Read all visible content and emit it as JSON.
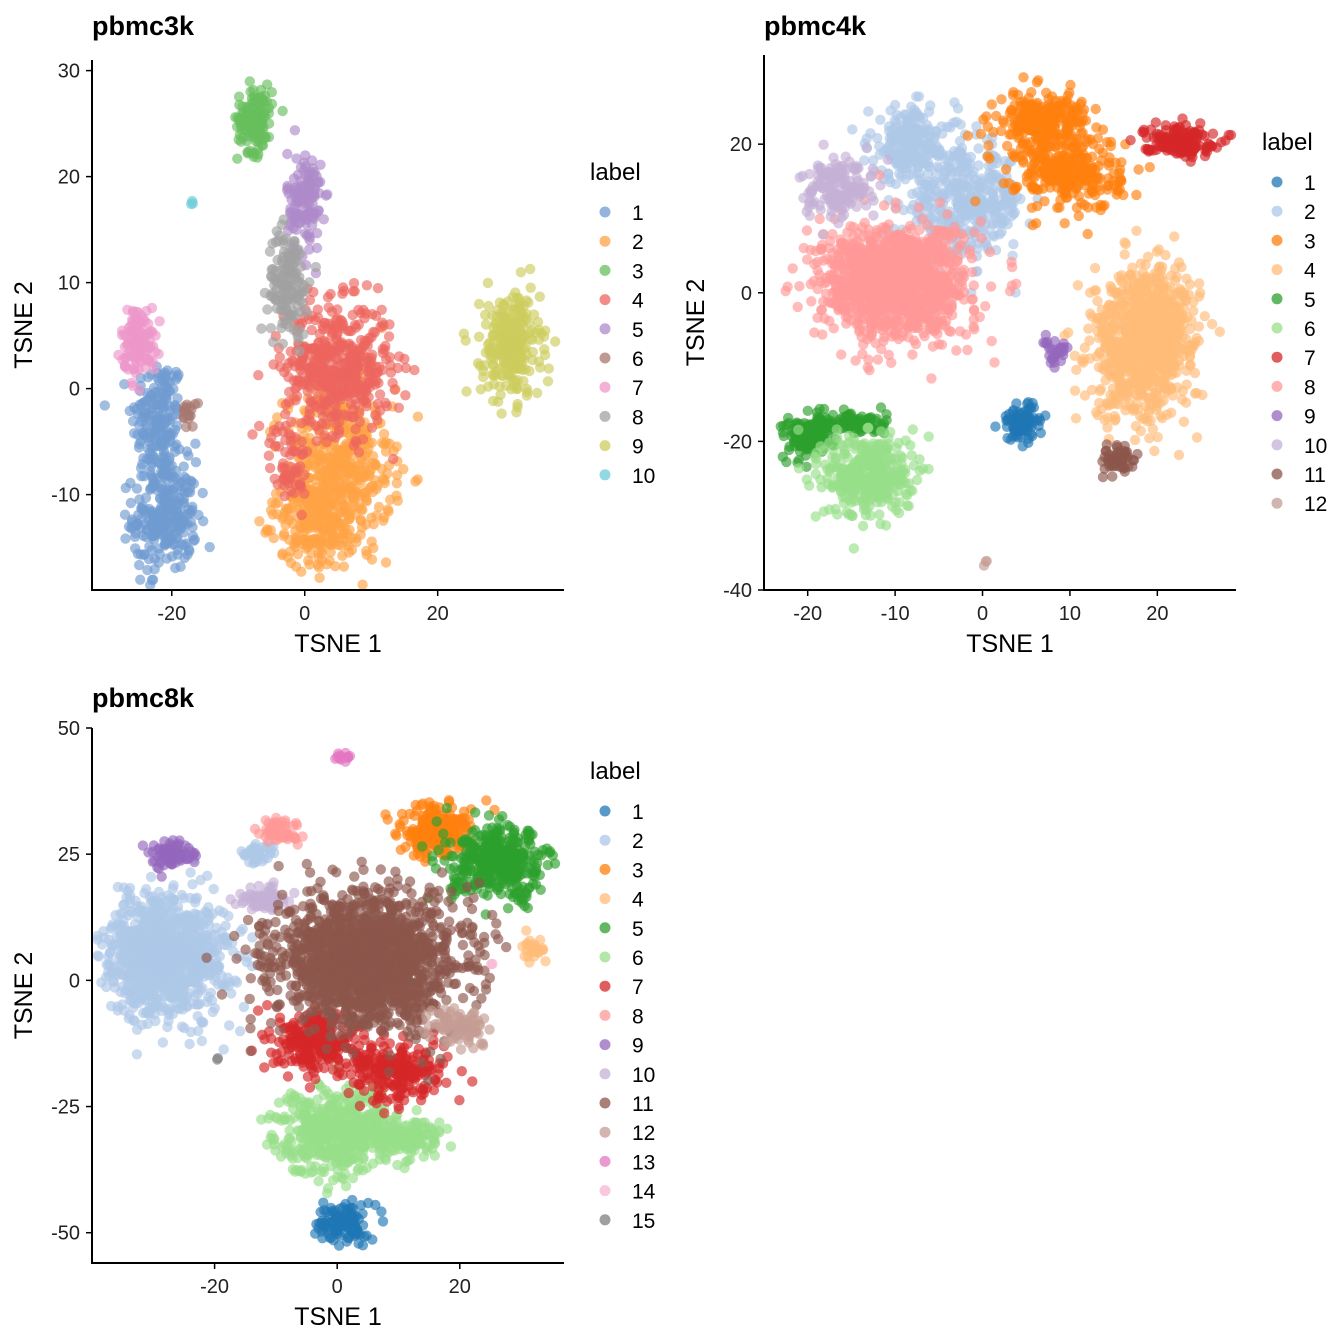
{
  "chart_data": [
    {
      "type": "scatter",
      "title": "pbmc3k",
      "xlabel": "TSNE 1",
      "ylabel": "TSNE 2",
      "xlim": [
        -32,
        39
      ],
      "ylim": [
        -19,
        31
      ],
      "xticks": [
        -20,
        0,
        20
      ],
      "yticks": [
        -10,
        0,
        10,
        20,
        30
      ],
      "legend_title": "label",
      "series": [
        {
          "name": "1",
          "color": "#6f9bd1",
          "clusters": [
            {
              "cx": -22,
              "cy": -3,
              "sx": 2.0,
              "sy": 3.0,
              "n": 180
            },
            {
              "cx": -21,
              "cy": -12,
              "sx": 2.4,
              "sy": 2.6,
              "n": 260
            }
          ]
        },
        {
          "name": "2",
          "color": "#ffa345",
          "clusters": [
            {
              "cx": 5,
              "cy": -8,
              "sx": 4.0,
              "sy": 4.0,
              "n": 520
            },
            {
              "cx": 1,
              "cy": -13,
              "sx": 2.5,
              "sy": 2.0,
              "n": 150
            }
          ]
        },
        {
          "name": "3",
          "color": "#67bf5c",
          "clusters": [
            {
              "cx": -7.5,
              "cy": 25.5,
              "sx": 1.3,
              "sy": 1.6,
              "n": 140
            }
          ]
        },
        {
          "name": "4",
          "color": "#ed665d",
          "clusters": [
            {
              "cx": 5,
              "cy": 2,
              "sx": 4.0,
              "sy": 3.0,
              "n": 480
            },
            {
              "cx": -2.5,
              "cy": -7,
              "sx": 1.4,
              "sy": 2.0,
              "n": 60
            }
          ]
        },
        {
          "name": "5",
          "color": "#ad8bc9",
          "clusters": [
            {
              "cx": 0,
              "cy": 17.5,
              "sx": 1.3,
              "sy": 2.5,
              "n": 140
            }
          ]
        },
        {
          "name": "6",
          "color": "#a8786e",
          "clusters": [
            {
              "cx": -17.5,
              "cy": -2.2,
              "sx": 0.5,
              "sy": 0.7,
              "n": 18
            }
          ]
        },
        {
          "name": "7",
          "color": "#ed97ca",
          "clusters": [
            {
              "cx": -25,
              "cy": 4.5,
              "sx": 1.3,
              "sy": 1.6,
              "n": 130
            }
          ]
        },
        {
          "name": "8",
          "color": "#a2a2a2",
          "clusters": [
            {
              "cx": -2.5,
              "cy": 10,
              "sx": 1.5,
              "sy": 2.5,
              "n": 150
            }
          ]
        },
        {
          "name": "9",
          "color": "#cdcc5d",
          "clusters": [
            {
              "cx": 31,
              "cy": 4,
              "sx": 2.2,
              "sy": 2.5,
              "n": 260
            }
          ]
        },
        {
          "name": "10",
          "color": "#6dccda",
          "clusters": [
            {
              "cx": -17,
              "cy": 17.5,
              "sx": 0.12,
              "sy": 0.12,
              "n": 3
            }
          ]
        }
      ]
    },
    {
      "type": "scatter",
      "title": "pbmc4k",
      "xlabel": "TSNE 1",
      "ylabel": "TSNE 2",
      "xlim": [
        -25,
        29
      ],
      "ylim": [
        -40,
        32
      ],
      "xticks": [
        -20,
        -10,
        0,
        10,
        20
      ],
      "yticks": [
        -40,
        -20,
        0,
        20
      ],
      "legend_title": "label",
      "series": [
        {
          "name": "1",
          "color": "#1f77b4",
          "clusters": [
            {
              "cx": 4.5,
              "cy": -17.5,
              "sx": 1.2,
              "sy": 1.3,
              "n": 90
            }
          ]
        },
        {
          "name": "2",
          "color": "#aec7e8",
          "clusters": [
            {
              "cx": -8,
              "cy": 20,
              "sx": 2.5,
              "sy": 2.5,
              "n": 220
            },
            {
              "cx": -2,
              "cy": 12,
              "sx": 3.5,
              "sy": 3.5,
              "n": 380
            }
          ]
        },
        {
          "name": "3",
          "color": "#ff7f0e",
          "clusters": [
            {
              "cx": 7,
              "cy": 23,
              "sx": 2.6,
              "sy": 2.0,
              "n": 260
            },
            {
              "cx": 10,
              "cy": 16,
              "sx": 3.0,
              "sy": 2.5,
              "n": 260
            }
          ]
        },
        {
          "name": "4",
          "color": "#ffbb78",
          "clusters": [
            {
              "cx": 18,
              "cy": -7,
              "sx": 2.8,
              "sy": 5.0,
              "n": 700
            },
            {
              "cx": 20.5,
              "cy": -4,
              "sx": 2.0,
              "sy": 3.5,
              "n": 200
            }
          ]
        },
        {
          "name": "5",
          "color": "#2ca02c",
          "clusters": [
            {
              "cx": -20,
              "cy": -19.5,
              "sx": 1.4,
              "sy": 1.4,
              "n": 120
            },
            {
              "cx": -15,
              "cy": -17.5,
              "sx": 2.0,
              "sy": 0.8,
              "n": 100
            }
          ]
        },
        {
          "name": "6",
          "color": "#98df8a",
          "clusters": [
            {
              "cx": -13,
              "cy": -24.5,
              "sx": 2.5,
              "sy": 2.8,
              "n": 380
            }
          ]
        },
        {
          "name": "7",
          "color": "#d62728",
          "clusters": [
            {
              "cx": 22.5,
              "cy": 20.5,
              "sx": 2.0,
              "sy": 1.0,
              "n": 160
            }
          ]
        },
        {
          "name": "8",
          "color": "#ff9896",
          "clusters": [
            {
              "cx": -10,
              "cy": 1.5,
              "sx": 4.2,
              "sy": 3.8,
              "n": 1200
            }
          ]
        },
        {
          "name": "9",
          "color": "#9467bd",
          "clusters": [
            {
              "cx": 8.5,
              "cy": -8,
              "sx": 0.8,
              "sy": 1.0,
              "n": 30
            }
          ]
        },
        {
          "name": "10",
          "color": "#c5b0d5",
          "clusters": [
            {
              "cx": -16.5,
              "cy": 14,
              "sx": 2.0,
              "sy": 2.0,
              "n": 160
            }
          ]
        },
        {
          "name": "11",
          "color": "#8c564b",
          "clusters": [
            {
              "cx": 15.5,
              "cy": -22.5,
              "sx": 0.9,
              "sy": 0.9,
              "n": 60
            }
          ]
        },
        {
          "name": "12",
          "color": "#c49c94",
          "clusters": [
            {
              "cx": 0.5,
              "cy": -36.5,
              "sx": 0.2,
              "sy": 0.2,
              "n": 3
            }
          ]
        }
      ]
    },
    {
      "type": "scatter",
      "title": "pbmc8k",
      "xlabel": "TSNE 1",
      "ylabel": "TSNE 2",
      "xlim": [
        -40,
        37
      ],
      "ylim": [
        -56,
        50
      ],
      "xticks": [
        -20,
        0,
        20
      ],
      "yticks": [
        -50,
        -25,
        0,
        25,
        50
      ],
      "legend_title": "label",
      "series": [
        {
          "name": "1",
          "color": "#1f77b4",
          "clusters": [
            {
              "cx": 1,
              "cy": -48,
              "sx": 2.0,
              "sy": 2.0,
              "n": 120
            }
          ]
        },
        {
          "name": "2",
          "color": "#aec7e8",
          "clusters": [
            {
              "cx": -28,
              "cy": 5,
              "sx": 5.0,
              "sy": 6.0,
              "n": 1000
            },
            {
              "cx": -13,
              "cy": 25,
              "sx": 1.5,
              "sy": 1.0,
              "n": 40
            }
          ]
        },
        {
          "name": "3",
          "color": "#ff7f0e",
          "clusters": [
            {
              "cx": 16,
              "cy": 29.5,
              "sx": 3.0,
              "sy": 2.5,
              "n": 220
            }
          ]
        },
        {
          "name": "4",
          "color": "#ffbb78",
          "clusters": [
            {
              "cx": 32,
              "cy": 6,
              "sx": 1.0,
              "sy": 1.0,
              "n": 30
            }
          ]
        },
        {
          "name": "5",
          "color": "#2ca02c",
          "clusters": [
            {
              "cx": 26.5,
              "cy": 23,
              "sx": 4.0,
              "sy": 3.5,
              "n": 380
            }
          ]
        },
        {
          "name": "6",
          "color": "#98df8a",
          "clusters": [
            {
              "cx": 0,
              "cy": -30,
              "sx": 5.0,
              "sy": 4.0,
              "n": 520
            },
            {
              "cx": 11,
              "cy": -31,
              "sx": 3.0,
              "sy": 2.0,
              "n": 120
            }
          ]
        },
        {
          "name": "7",
          "color": "#d62728",
          "clusters": [
            {
              "cx": -3,
              "cy": -12,
              "sx": 3.5,
              "sy": 3.0,
              "n": 260
            },
            {
              "cx": 10,
              "cy": -18,
              "sx": 4.0,
              "sy": 3.0,
              "n": 240
            }
          ]
        },
        {
          "name": "8",
          "color": "#ff9896",
          "clusters": [
            {
              "cx": -9.5,
              "cy": 29.5,
              "sx": 1.6,
              "sy": 1.3,
              "n": 60
            }
          ]
        },
        {
          "name": "9",
          "color": "#9467bd",
          "clusters": [
            {
              "cx": -27,
              "cy": 25,
              "sx": 1.5,
              "sy": 1.2,
              "n": 80
            }
          ]
        },
        {
          "name": "10",
          "color": "#c5b0d5",
          "clusters": [
            {
              "cx": -12,
              "cy": 16,
              "sx": 1.8,
              "sy": 1.2,
              "n": 80
            }
          ]
        },
        {
          "name": "11",
          "color": "#8c564b",
          "clusters": [
            {
              "cx": 5,
              "cy": 4,
              "sx": 7.5,
              "sy": 6.5,
              "n": 1600
            }
          ]
        },
        {
          "name": "12",
          "color": "#c49c94",
          "clusters": [
            {
              "cx": 20,
              "cy": -9,
              "sx": 2.2,
              "sy": 1.8,
              "n": 90
            }
          ]
        },
        {
          "name": "13",
          "color": "#e377c2",
          "clusters": [
            {
              "cx": 1,
              "cy": 44.5,
              "sx": 0.6,
              "sy": 0.5,
              "n": 14
            }
          ]
        },
        {
          "name": "14",
          "color": "#f7b6d2",
          "clusters": [
            {
              "cx": 25,
              "cy": 3,
              "sx": 0.2,
              "sy": 0.2,
              "n": 2
            }
          ]
        },
        {
          "name": "15",
          "color": "#7f7f7f",
          "clusters": [
            {
              "cx": -19.5,
              "cy": -15.5,
              "sx": 0.15,
              "sy": 0.15,
              "n": 2
            }
          ]
        }
      ]
    }
  ]
}
